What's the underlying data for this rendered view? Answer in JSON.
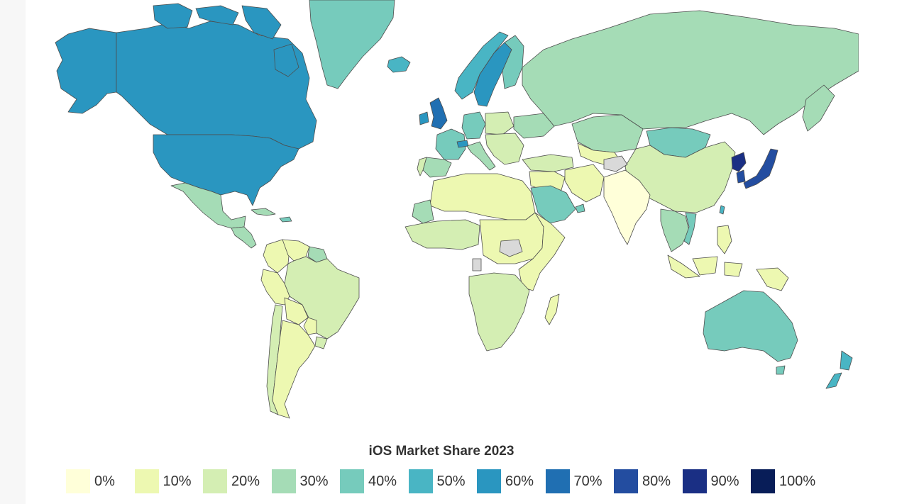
{
  "map": {
    "title": "iOS Market Share 2023",
    "legend": [
      {
        "label": "0%",
        "color": "#ffffd9"
      },
      {
        "label": "10%",
        "color": "#edf8b1"
      },
      {
        "label": "20%",
        "color": "#d4eeb3"
      },
      {
        "label": "30%",
        "color": "#a5dcb6"
      },
      {
        "label": "40%",
        "color": "#76cbbc"
      },
      {
        "label": "50%",
        "color": "#49b5c4"
      },
      {
        "label": "60%",
        "color": "#2a96c0"
      },
      {
        "label": "70%",
        "color": "#206fb2"
      },
      {
        "label": "80%",
        "color": "#234da0"
      },
      {
        "label": "90%",
        "color": "#1a2f84"
      },
      {
        "label": "100%",
        "color": "#081d58"
      }
    ],
    "no_data_color": "#d9d9d9",
    "regions": [
      {
        "name": "Canada",
        "color": "#2a96c0"
      },
      {
        "name": "Alaska",
        "color": "#2a96c0"
      },
      {
        "name": "United States",
        "color": "#2a96c0"
      },
      {
        "name": "Greenland",
        "color": "#76cbbc"
      },
      {
        "name": "Iceland",
        "color": "#49b5c4"
      },
      {
        "name": "Mexico",
        "color": "#a5dcb6"
      },
      {
        "name": "Central America",
        "color": "#a5dcb6"
      },
      {
        "name": "Colombia",
        "color": "#edf8b1"
      },
      {
        "name": "Venezuela",
        "color": "#edf8b1"
      },
      {
        "name": "Guianas",
        "color": "#a5dcb6"
      },
      {
        "name": "Brazil",
        "color": "#d4eeb3"
      },
      {
        "name": "Peru",
        "color": "#edf8b1"
      },
      {
        "name": "Bolivia",
        "color": "#edf8b1"
      },
      {
        "name": "Chile",
        "color": "#d4eeb3"
      },
      {
        "name": "Argentina",
        "color": "#edf8b1"
      },
      {
        "name": "Paraguay",
        "color": "#edf8b1"
      },
      {
        "name": "Uruguay",
        "color": "#d4eeb3"
      },
      {
        "name": "United Kingdom",
        "color": "#206fb2"
      },
      {
        "name": "Ireland",
        "color": "#2a96c0"
      },
      {
        "name": "Norway",
        "color": "#49b5c4"
      },
      {
        "name": "Sweden",
        "color": "#2a96c0"
      },
      {
        "name": "Finland",
        "color": "#76cbbc"
      },
      {
        "name": "France",
        "color": "#76cbbc"
      },
      {
        "name": "Spain",
        "color": "#a5dcb6"
      },
      {
        "name": "Portugal",
        "color": "#d4eeb3"
      },
      {
        "name": "Germany",
        "color": "#76cbbc"
      },
      {
        "name": "Switzerland",
        "color": "#2a96c0"
      },
      {
        "name": "Italy",
        "color": "#a5dcb6"
      },
      {
        "name": "Poland",
        "color": "#d4eeb3"
      },
      {
        "name": "Balkans",
        "color": "#d4eeb3"
      },
      {
        "name": "Ukraine",
        "color": "#a5dcb6"
      },
      {
        "name": "Turkey",
        "color": "#d4eeb3"
      },
      {
        "name": "Russia",
        "color": "#a5dcb6"
      },
      {
        "name": "Kazakhstan",
        "color": "#a5dcb6"
      },
      {
        "name": "Mongolia",
        "color": "#76cbbc"
      },
      {
        "name": "China",
        "color": "#d4eeb3"
      },
      {
        "name": "North Korea",
        "color": "#1a2f84"
      },
      {
        "name": "South Korea",
        "color": "#234da0"
      },
      {
        "name": "Japan",
        "color": "#234da0"
      },
      {
        "name": "Taiwan",
        "color": "#49b5c4"
      },
      {
        "name": "Middle East",
        "color": "#edf8b1"
      },
      {
        "name": "Saudi Arabia",
        "color": "#76cbbc"
      },
      {
        "name": "UAE",
        "color": "#76cbbc"
      },
      {
        "name": "Iran",
        "color": "#edf8b1"
      },
      {
        "name": "Afghanistan",
        "color": "#d9d9d9"
      },
      {
        "name": "Central Asia",
        "color": "#edf8b1"
      },
      {
        "name": "India",
        "color": "#ffffd9"
      },
      {
        "name": "Southeast Asia",
        "color": "#a5dcb6"
      },
      {
        "name": "Vietnam",
        "color": "#76cbbc"
      },
      {
        "name": "Indonesia",
        "color": "#edf8b1"
      },
      {
        "name": "Philippines",
        "color": "#edf8b1"
      },
      {
        "name": "Papua New Guinea",
        "color": "#edf8b1"
      },
      {
        "name": "Australia",
        "color": "#76cbbc"
      },
      {
        "name": "New Zealand",
        "color": "#49b5c4"
      },
      {
        "name": "North Africa",
        "color": "#edf8b1"
      },
      {
        "name": "Western Sahara",
        "color": "#a5dcb6"
      },
      {
        "name": "West Africa",
        "color": "#d4eeb3"
      },
      {
        "name": "Central Africa",
        "color": "#edf8b1"
      },
      {
        "name": "South Sudan",
        "color": "#d9d9d9"
      },
      {
        "name": "Gabon",
        "color": "#d9d9d9"
      },
      {
        "name": "East Africa",
        "color": "#edf8b1"
      },
      {
        "name": "Southern Africa",
        "color": "#d4eeb3"
      },
      {
        "name": "Madagascar",
        "color": "#edf8b1"
      },
      {
        "name": "Cuba",
        "color": "#a5dcb6"
      },
      {
        "name": "Caribbean",
        "color": "#76cbbc"
      }
    ]
  }
}
